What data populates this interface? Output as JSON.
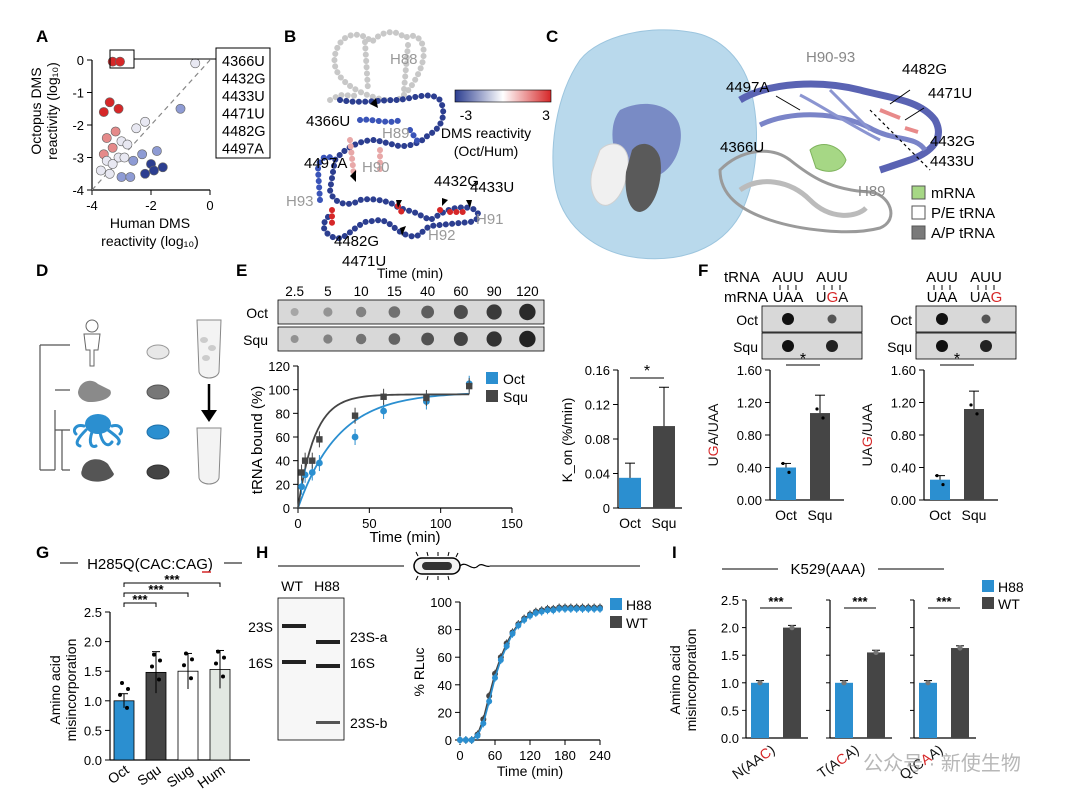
{
  "panels": {
    "A": {
      "label": "A",
      "xlabel_1": "Human DMS",
      "xlabel_2": "reactivity (log₁₀)",
      "ylabel_1": "Octopus DMS",
      "ylabel_2": "reactivity (log₁₀)",
      "xticks": [
        "-4",
        "-2",
        "0"
      ],
      "yticks": [
        "0",
        "-1",
        "-2",
        "-3",
        "-4"
      ],
      "callout": [
        "4366U",
        "4432G",
        "4433U",
        "4471U",
        "4482G",
        "4497A"
      ]
    },
    "B": {
      "label": "B",
      "helices": [
        "H88",
        "H89",
        "H90",
        "H91",
        "H92",
        "H93"
      ],
      "sites": [
        "4366U",
        "4497A",
        "4432G",
        "4433U",
        "4482G",
        "4471U"
      ],
      "scale_min": "-3",
      "scale_max": "3",
      "scale_title_1": "DMS reactivity",
      "scale_title_2": "(Oct/Hum)"
    },
    "C": {
      "label": "C",
      "labels": [
        "H90-93",
        "4482G",
        "4497A",
        "4471U",
        "4432G",
        "4433U",
        "4366U",
        "H89"
      ],
      "legend": [
        "mRNA",
        "P/E tRNA",
        "A/P tRNA"
      ],
      "legend_colors": [
        "#a6d785",
        "#ffffff",
        "#7a7a7a"
      ]
    },
    "D": {
      "label": "D"
    },
    "E": {
      "label": "E",
      "time_title": "Time (min)",
      "times": [
        "2.5",
        "5",
        "10",
        "15",
        "40",
        "60",
        "90",
        "120"
      ],
      "rows": [
        "Oct",
        "Squ"
      ],
      "ylabel": "tRNA bound (%)",
      "xlabel": "Time (min)",
      "yticks": [
        "0",
        "20",
        "40",
        "60",
        "80",
        "100",
        "120"
      ],
      "xticks": [
        "0",
        "50",
        "100",
        "150"
      ],
      "legend": [
        "Oct",
        "Squ"
      ],
      "bar_ylabel": "K_on (%/min)",
      "bar_yticks": [
        "0",
        "0.04",
        "0.08",
        "0.12",
        "0.16"
      ],
      "bar_x": [
        "Oct",
        "Squ"
      ],
      "sig": "*"
    },
    "F": {
      "label": "F",
      "trna_label": "tRNA",
      "mrna_label": "mRNA",
      "codons_left": [
        "AUU",
        "AUU",
        "UAA",
        "UGA"
      ],
      "codons_right": [
        "AUU",
        "AUU",
        "UAA",
        "UAG"
      ],
      "rows": [
        "Oct",
        "Squ"
      ],
      "ylabel_left": "UGA/UAA",
      "ylabel_right": "UAG/UAA",
      "yticks": [
        "0.00",
        "0.40",
        "0.80",
        "1.20",
        "1.60"
      ],
      "x": [
        "Oct",
        "Squ"
      ],
      "sig": "*"
    },
    "G": {
      "label": "G",
      "title": "H285Q(CAC:CAG)",
      "ylabel_1": "Amino acid",
      "ylabel_2": "misincorporation",
      "yticks": [
        "0.0",
        "0.5",
        "1.0",
        "1.5",
        "2.0",
        "2.5"
      ],
      "x": [
        "Oct",
        "Squ",
        "Slug",
        "Hum"
      ],
      "sig": "***"
    },
    "H": {
      "label": "H",
      "gel_lanes": [
        "WT",
        "H88"
      ],
      "gel_left": [
        "23S",
        "16S"
      ],
      "gel_right": [
        "23S-a",
        "16S",
        "23S-b"
      ],
      "ylabel": "% RLuc",
      "xlabel": "Time (min)",
      "yticks": [
        "0",
        "20",
        "40",
        "60",
        "80",
        "100"
      ],
      "xticks": [
        "0",
        "60",
        "120",
        "180",
        "240"
      ],
      "legend": [
        "H88",
        "WT"
      ]
    },
    "I": {
      "label": "I",
      "title": "K529(AAA)",
      "ylabel_1": "Amino acid",
      "ylabel_2": "misincorporation",
      "yticks": [
        "0.0",
        "0.5",
        "1.0",
        "1.5",
        "2.0",
        "2.5"
      ],
      "groups": [
        "N(AAC)",
        "T(ACA)",
        "Q(CAA)"
      ],
      "legend": [
        "H88",
        "WT"
      ],
      "sig": "***"
    }
  },
  "watermark": "公众号 · 新使生物",
  "colors": {
    "blue": "#2b8fd0",
    "dark": "#454545",
    "red": "#d62728",
    "navy": "#2c3e90"
  },
  "chart_data": [
    {
      "type": "scatter",
      "panel": "A",
      "xlabel": "Human DMS reactivity (log₁₀)",
      "ylabel": "Octopus DMS reactivity (log₁₀)",
      "xlim": [
        -4,
        0
      ],
      "ylim": [
        -4,
        0
      ],
      "points": [
        [
          -3.3,
          -0.05
        ],
        [
          -3.05,
          -0.05
        ],
        [
          -3.4,
          -1.3
        ],
        [
          -3.1,
          -1.5
        ],
        [
          -3.6,
          -1.6
        ],
        [
          -3.2,
          -2.2
        ],
        [
          -3.5,
          -2.4
        ],
        [
          -3.0,
          -2.5
        ],
        [
          -2.8,
          -2.6
        ],
        [
          -3.3,
          -2.7
        ],
        [
          -3.6,
          -2.9
        ],
        [
          -3.1,
          -3.0
        ],
        [
          -2.9,
          -3.0
        ],
        [
          -3.5,
          -3.1
        ],
        [
          -3.3,
          -3.2
        ],
        [
          -2.6,
          -3.1
        ],
        [
          -2.3,
          -2.9
        ],
        [
          -2.0,
          -3.2
        ],
        [
          -1.6,
          -3.3
        ],
        [
          -1.9,
          -3.4
        ],
        [
          -2.2,
          -3.5
        ],
        [
          -3.7,
          -3.4
        ],
        [
          -3.4,
          -3.5
        ],
        [
          -3.0,
          -3.6
        ],
        [
          -2.7,
          -3.6
        ],
        [
          -1.0,
          -1.5
        ],
        [
          -2.5,
          -2.1
        ],
        [
          -2.2,
          -1.9
        ],
        [
          -1.8,
          -2.8
        ],
        [
          -0.5,
          -0.1
        ]
      ]
    },
    {
      "type": "line",
      "panel": "E",
      "xlabel": "Time (min)",
      "ylabel": "tRNA bound (%)",
      "xlim": [
        0,
        150
      ],
      "ylim": [
        0,
        120
      ],
      "series": [
        {
          "name": "Oct",
          "x": [
            2.5,
            5,
            10,
            15,
            40,
            60,
            90,
            120
          ],
          "y": [
            18,
            28,
            30,
            38,
            60,
            82,
            90,
            105
          ]
        },
        {
          "name": "Squ",
          "x": [
            2.5,
            5,
            10,
            15,
            40,
            60,
            90,
            120
          ],
          "y": [
            30,
            40,
            40,
            58,
            78,
            94,
            93,
            103
          ]
        }
      ]
    },
    {
      "type": "bar",
      "panel": "E",
      "ylabel": "K_on (%/min)",
      "ylim": [
        0,
        0.16
      ],
      "categories": [
        "Oct",
        "Squ"
      ],
      "values": [
        0.035,
        0.095
      ]
    },
    {
      "type": "bar",
      "panel": "F",
      "ylabel": "UGA/UAA",
      "ylim": [
        0,
        1.6
      ],
      "categories": [
        "Oct",
        "Squ"
      ],
      "values": [
        0.4,
        1.07
      ]
    },
    {
      "type": "bar",
      "panel": "F",
      "ylabel": "UAG/UAA",
      "ylim": [
        0,
        1.6
      ],
      "categories": [
        "Oct",
        "Squ"
      ],
      "values": [
        0.25,
        1.12
      ]
    },
    {
      "type": "bar",
      "panel": "G",
      "ylabel": "Amino acid misincorporation",
      "ylim": [
        0,
        2.5
      ],
      "categories": [
        "Oct",
        "Squ",
        "Slug",
        "Hum"
      ],
      "values": [
        1.0,
        1.48,
        1.5,
        1.53
      ]
    },
    {
      "type": "line",
      "panel": "H",
      "xlabel": "Time (min)",
      "ylabel": "% RLuc",
      "xlim": [
        0,
        240
      ],
      "ylim": [
        0,
        100
      ],
      "series": [
        {
          "name": "H88",
          "x": [
            0,
            10,
            20,
            30,
            40,
            50,
            60,
            70,
            80,
            90,
            100,
            110,
            120,
            130,
            140,
            150,
            160,
            170,
            180,
            190,
            200,
            210,
            220,
            230,
            240
          ],
          "y": [
            0,
            0,
            0,
            3,
            12,
            28,
            45,
            58,
            68,
            77,
            83,
            87,
            90,
            92,
            93,
            94,
            94,
            95,
            95,
            95,
            95,
            95,
            95,
            95,
            95
          ]
        },
        {
          "name": "WT",
          "x": [
            0,
            10,
            20,
            30,
            40,
            50,
            60,
            70,
            80,
            90,
            100,
            110,
            120,
            130,
            140,
            150,
            160,
            170,
            180,
            190,
            200,
            210,
            220,
            230,
            240
          ],
          "y": [
            0,
            0,
            0,
            4,
            15,
            32,
            48,
            60,
            70,
            78,
            84,
            88,
            91,
            93,
            94,
            95,
            95,
            96,
            96,
            96,
            96,
            96,
            96,
            96,
            96
          ]
        }
      ]
    },
    {
      "type": "bar",
      "panel": "I",
      "ylabel": "Amino acid misincorporation",
      "ylim": [
        0,
        2.5
      ],
      "categories": [
        "N(AAC)",
        "T(ACA)",
        "Q(CAA)"
      ],
      "series": [
        {
          "name": "H88",
          "values": [
            1.0,
            1.0,
            1.0
          ]
        },
        {
          "name": "WT",
          "values": [
            2.0,
            1.55,
            1.63
          ]
        }
      ]
    }
  ]
}
